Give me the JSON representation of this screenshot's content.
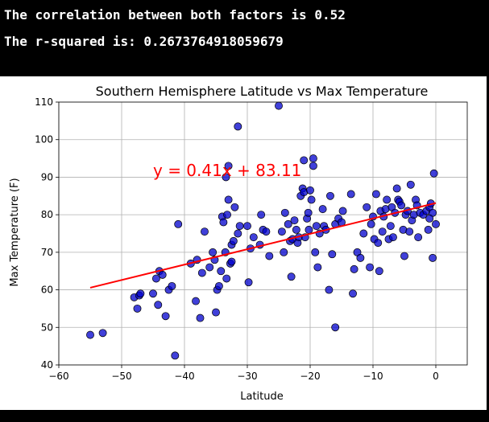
{
  "console": {
    "line1": "The correlation between both factors is 0.52",
    "line2": "The r-squared is: 0.2673764918059679"
  },
  "chart_data": {
    "type": "scatter",
    "title": "Southern Hemisphere Latitude vs Max Temperature",
    "xlabel": "Latitude",
    "ylabel": "Max Temperature (F)",
    "xlim": [
      -60,
      5
    ],
    "ylim": [
      40,
      110
    ],
    "x_ticks": [
      -60,
      -50,
      -40,
      -30,
      -20,
      -10,
      0
    ],
    "x_tick_labels": [
      "−60",
      "−50",
      "−40",
      "−30",
      "−20",
      "−10",
      "0"
    ],
    "y_ticks": [
      40,
      50,
      60,
      70,
      80,
      90,
      100,
      110
    ],
    "y_tick_labels": [
      "40",
      "50",
      "60",
      "70",
      "80",
      "90",
      "100",
      "110"
    ],
    "grid": true,
    "point_color": "#0000cc",
    "line_color": "#ff0000",
    "regression": {
      "equation": "y = 0.41x + 83.11",
      "slope": 0.41,
      "intercept": 83.11,
      "x_range": [
        -55,
        0
      ]
    },
    "points": [
      [
        -55,
        48
      ],
      [
        -53,
        48.5
      ],
      [
        -48,
        58
      ],
      [
        -47.5,
        55
      ],
      [
        -47.2,
        58.5
      ],
      [
        -47,
        59
      ],
      [
        -45,
        59
      ],
      [
        -44.5,
        63
      ],
      [
        -44,
        65
      ],
      [
        -44.2,
        56
      ],
      [
        -43.5,
        64
      ],
      [
        -43,
        53
      ],
      [
        -42.5,
        60
      ],
      [
        -42,
        61
      ],
      [
        -41.5,
        42.5
      ],
      [
        -41,
        77.5
      ],
      [
        -39,
        67
      ],
      [
        -38.2,
        57
      ],
      [
        -38,
        68
      ],
      [
        -37.5,
        52.5
      ],
      [
        -37.2,
        64.5
      ],
      [
        -36.8,
        75.5
      ],
      [
        -36,
        66
      ],
      [
        -35.5,
        70
      ],
      [
        -35.2,
        68
      ],
      [
        -35,
        54
      ],
      [
        -34.8,
        60
      ],
      [
        -34.5,
        61
      ],
      [
        -34.2,
        65
      ],
      [
        -34,
        79.5
      ],
      [
        -33.8,
        78
      ],
      [
        -33.5,
        70
      ],
      [
        -33.3,
        63
      ],
      [
        -33,
        84
      ],
      [
        -33.2,
        80
      ],
      [
        -33.4,
        90
      ],
      [
        -33,
        93
      ],
      [
        -32.7,
        67
      ],
      [
        -32.5,
        72
      ],
      [
        -32.2,
        73
      ],
      [
        -32.5,
        67.5
      ],
      [
        -32,
        82
      ],
      [
        -31.5,
        75
      ],
      [
        -31.2,
        77
      ],
      [
        -31.5,
        103.5
      ],
      [
        -30,
        77
      ],
      [
        -29.8,
        62
      ],
      [
        -29.5,
        71
      ],
      [
        -29,
        74
      ],
      [
        -28,
        72
      ],
      [
        -27.8,
        80
      ],
      [
        -27.5,
        76
      ],
      [
        -27,
        75.5
      ],
      [
        -26.5,
        69
      ],
      [
        -25,
        109
      ],
      [
        -24.5,
        75.5
      ],
      [
        -24.2,
        70
      ],
      [
        -24,
        80.5
      ],
      [
        -23.5,
        77.5
      ],
      [
        -23.2,
        73
      ],
      [
        -23,
        63.5
      ],
      [
        -22.8,
        73.5
      ],
      [
        -22.5,
        78.5
      ],
      [
        -22.2,
        76
      ],
      [
        -22,
        72.5
      ],
      [
        -21.8,
        74
      ],
      [
        -21.5,
        85
      ],
      [
        -21.2,
        87
      ],
      [
        -21,
        86
      ],
      [
        -21,
        94.5
      ],
      [
        -20.8,
        74
      ],
      [
        -20.5,
        79
      ],
      [
        -20.3,
        80.5
      ],
      [
        -20.2,
        76
      ],
      [
        -20,
        86.5
      ],
      [
        -19.8,
        84
      ],
      [
        -19.5,
        93
      ],
      [
        -19.5,
        95
      ],
      [
        -19.2,
        70
      ],
      [
        -19,
        77
      ],
      [
        -18.8,
        66
      ],
      [
        -18.5,
        75
      ],
      [
        -18,
        81.5
      ],
      [
        -17.8,
        77
      ],
      [
        -17.5,
        76
      ],
      [
        -17,
        60
      ],
      [
        -16.8,
        85
      ],
      [
        -16.5,
        69.5
      ],
      [
        -16,
        77.5
      ],
      [
        -16,
        50
      ],
      [
        -15.5,
        79
      ],
      [
        -15,
        78
      ],
      [
        -14.8,
        81
      ],
      [
        -13.5,
        85.5
      ],
      [
        -13.2,
        59
      ],
      [
        -13,
        65.5
      ],
      [
        -12.5,
        70
      ],
      [
        -12,
        68.5
      ],
      [
        -11.5,
        75
      ],
      [
        -11,
        82
      ],
      [
        -10.5,
        66
      ],
      [
        -10.3,
        77.5
      ],
      [
        -10,
        79.5
      ],
      [
        -9.8,
        73.5
      ],
      [
        -9.5,
        85.5
      ],
      [
        -9.2,
        72.5
      ],
      [
        -9,
        65
      ],
      [
        -8.8,
        81
      ],
      [
        -8.5,
        75.5
      ],
      [
        -8.3,
        79.5
      ],
      [
        -8,
        81.5
      ],
      [
        -7.8,
        84
      ],
      [
        -7.5,
        73.5
      ],
      [
        -7.2,
        77
      ],
      [
        -7,
        82
      ],
      [
        -6.8,
        74
      ],
      [
        -6.5,
        80.5
      ],
      [
        -6.2,
        87
      ],
      [
        -6,
        84
      ],
      [
        -5.8,
        83.5
      ],
      [
        -5.5,
        82.5
      ],
      [
        -5.2,
        76
      ],
      [
        -5,
        69
      ],
      [
        -4.8,
        80
      ],
      [
        -4.5,
        81
      ],
      [
        -4.2,
        75.5
      ],
      [
        -4,
        88
      ],
      [
        -3.8,
        78.5
      ],
      [
        -3.5,
        80
      ],
      [
        -3.2,
        84
      ],
      [
        -3,
        82.5
      ],
      [
        -2.8,
        74
      ],
      [
        -2.5,
        80.5
      ],
      [
        -2,
        80
      ],
      [
        -1.5,
        81
      ],
      [
        -1.2,
        76
      ],
      [
        -1,
        82
      ],
      [
        -0.8,
        83
      ],
      [
        -0.5,
        68.5
      ],
      [
        -0.3,
        91
      ],
      [
        0,
        77.5
      ],
      [
        -0.5,
        80.5
      ],
      [
        -1,
        79
      ]
    ]
  }
}
